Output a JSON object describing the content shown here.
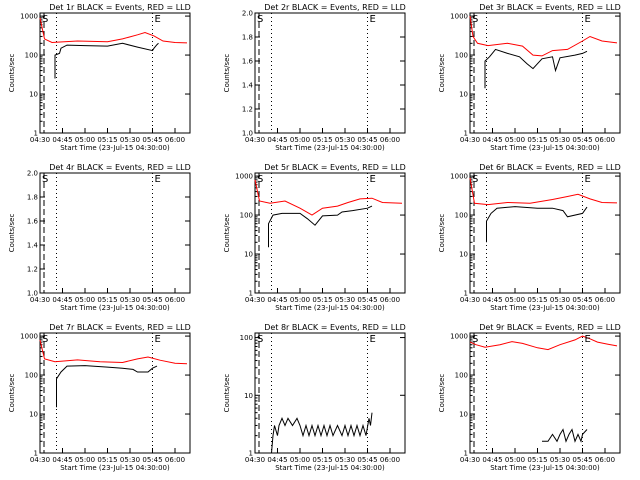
{
  "chart_data": [
    {
      "type": "line",
      "title": "Det 1r BLACK = Events, RED = LLD",
      "ylabel": "Counts/sec",
      "xlabel": "Start Time (23-Jul-15 04:30:00)",
      "scale": "log",
      "yticks": [
        "1",
        "10",
        "100",
        "1000"
      ],
      "ylim": [
        1,
        1200
      ],
      "xticks": [
        "04:30",
        "04:45",
        "05:00",
        "05:15",
        "05:30",
        "05:45",
        "06:00"
      ],
      "xlim": [
        0,
        100
      ],
      "vlines": [
        0,
        11,
        75
      ],
      "markers": {
        "S": 0,
        "E": 75
      },
      "series": [
        {
          "color": "#ff0000",
          "values": [
            [
              0,
              900
            ],
            [
              3,
              260
            ],
            [
              8,
              210
            ],
            [
              12,
              215
            ],
            [
              25,
              230
            ],
            [
              45,
              220
            ],
            [
              55,
              260
            ],
            [
              65,
              330
            ],
            [
              70,
              380
            ],
            [
              76,
              310
            ],
            [
              82,
              230
            ],
            [
              90,
              210
            ],
            [
              98,
              205
            ]
          ]
        },
        {
          "color": "#000000",
          "values": [
            [
              10,
              25
            ],
            [
              10,
              100
            ],
            [
              13,
              110
            ],
            [
              14,
              150
            ],
            [
              18,
              180
            ],
            [
              30,
              175
            ],
            [
              45,
              170
            ],
            [
              55,
              200
            ],
            [
              65,
              160
            ],
            [
              75,
              130
            ],
            [
              76,
              150
            ],
            [
              78,
              185
            ],
            [
              79,
              200
            ]
          ]
        }
      ]
    },
    {
      "type": "line",
      "title": "Det 2r BLACK = Events, RED = LLD",
      "ylabel": "Counts/sec",
      "xlabel": "Start Time (23-Jul-15 04:30:00)",
      "scale": "linear",
      "yticks": [
        "1.0",
        "1.2",
        "1.4",
        "1.6",
        "1.8",
        "2.0"
      ],
      "ylim": [
        1,
        2
      ],
      "xticks": [
        "04:30",
        "04:45",
        "05:00",
        "05:15",
        "05:30",
        "05:45",
        "06:00"
      ],
      "xlim": [
        0,
        100
      ],
      "vlines": [
        0,
        11,
        75
      ],
      "markers": {
        "S": 0,
        "E": 75
      },
      "series": []
    },
    {
      "type": "line",
      "title": "Det 3r BLACK = Events, RED = LLD",
      "ylabel": "Counts/sec",
      "xlabel": "Start Time (23-Jul-15 04:30:00)",
      "scale": "log",
      "yticks": [
        "1",
        "10",
        "100",
        "1000"
      ],
      "ylim": [
        1,
        1200
      ],
      "xticks": [
        "04:30",
        "04:45",
        "05:00",
        "05:15",
        "05:30",
        "05:45",
        "06:00"
      ],
      "xlim": [
        0,
        100
      ],
      "vlines": [
        0,
        11,
        75
      ],
      "markers": {
        "S": 0,
        "E": 75
      },
      "series": [
        {
          "color": "#ff0000",
          "values": [
            [
              0,
              1000
            ],
            [
              2,
              300
            ],
            [
              5,
              200
            ],
            [
              12,
              175
            ],
            [
              25,
              200
            ],
            [
              35,
              170
            ],
            [
              42,
              100
            ],
            [
              48,
              95
            ],
            [
              55,
              130
            ],
            [
              65,
              140
            ],
            [
              75,
              230
            ],
            [
              80,
              300
            ],
            [
              88,
              230
            ],
            [
              98,
              205
            ]
          ]
        },
        {
          "color": "#000000",
          "values": [
            [
              10,
              14
            ],
            [
              10,
              70
            ],
            [
              13,
              90
            ],
            [
              17,
              140
            ],
            [
              25,
              110
            ],
            [
              33,
              90
            ],
            [
              38,
              60
            ],
            [
              42,
              45
            ],
            [
              48,
              80
            ],
            [
              55,
              90
            ],
            [
              57,
              40
            ],
            [
              60,
              85
            ],
            [
              70,
              100
            ],
            [
              75,
              110
            ],
            [
              78,
              125
            ]
          ]
        }
      ]
    },
    {
      "type": "line",
      "title": "Det 4r BLACK = Events, RED = LLD",
      "ylabel": "Counts/sec",
      "xlabel": "Start Time (23-Jul-15 04:30:00)",
      "scale": "linear",
      "yticks": [
        "1.0",
        "1.2",
        "1.4",
        "1.6",
        "1.8",
        "2.0"
      ],
      "ylim": [
        1,
        2
      ],
      "xticks": [
        "04:30",
        "04:45",
        "05:00",
        "05:15",
        "05:30",
        "05:45",
        "06:00"
      ],
      "xlim": [
        0,
        100
      ],
      "vlines": [
        0,
        11,
        75
      ],
      "markers": {
        "S": 0,
        "E": 75
      },
      "series": []
    },
    {
      "type": "line",
      "title": "Det 5r BLACK = Events, RED = LLD",
      "ylabel": "Counts/sec",
      "xlabel": "Start Time (23-Jul-15 04:30:00)",
      "scale": "log",
      "yticks": [
        "1",
        "10",
        "100",
        "1000"
      ],
      "ylim": [
        1,
        1200
      ],
      "xticks": [
        "04:30",
        "04:45",
        "05:00",
        "05:15",
        "05:30",
        "05:45",
        "06:00"
      ],
      "xlim": [
        0,
        100
      ],
      "vlines": [
        0,
        11,
        75
      ],
      "markers": {
        "S": 0,
        "E": 75
      },
      "series": [
        {
          "color": "#ff0000",
          "values": [
            [
              0,
              800
            ],
            [
              3,
              230
            ],
            [
              10,
              200
            ],
            [
              20,
              230
            ],
            [
              30,
              150
            ],
            [
              38,
              100
            ],
            [
              45,
              150
            ],
            [
              55,
              170
            ],
            [
              62,
              210
            ],
            [
              70,
              260
            ],
            [
              78,
              270
            ],
            [
              85,
              210
            ],
            [
              98,
              200
            ]
          ]
        },
        {
          "color": "#000000",
          "values": [
            [
              9,
              15
            ],
            [
              9,
              60
            ],
            [
              12,
              100
            ],
            [
              18,
              110
            ],
            [
              30,
              110
            ],
            [
              35,
              80
            ],
            [
              40,
              55
            ],
            [
              45,
              95
            ],
            [
              55,
              100
            ],
            [
              58,
              120
            ],
            [
              65,
              130
            ],
            [
              75,
              150
            ],
            [
              78,
              170
            ]
          ]
        }
      ]
    },
    {
      "type": "line",
      "title": "Det 6r BLACK = Events, RED = LLD",
      "ylabel": "Counts/sec",
      "xlabel": "Start Time (23-Jul-15 04:30:00)",
      "scale": "log",
      "yticks": [
        "1",
        "10",
        "100",
        "1000"
      ],
      "ylim": [
        1,
        1200
      ],
      "xticks": [
        "04:30",
        "04:45",
        "05:00",
        "05:15",
        "05:30",
        "05:45",
        "06:00"
      ],
      "xlim": [
        0,
        100
      ],
      "vlines": [
        0,
        11,
        75
      ],
      "markers": {
        "S": 0,
        "E": 75
      },
      "series": [
        {
          "color": "#ff0000",
          "values": [
            [
              0,
              900
            ],
            [
              3,
              200
            ],
            [
              12,
              185
            ],
            [
              25,
              210
            ],
            [
              40,
              200
            ],
            [
              55,
              250
            ],
            [
              65,
              300
            ],
            [
              72,
              340
            ],
            [
              80,
              260
            ],
            [
              88,
              210
            ],
            [
              98,
              205
            ]
          ]
        },
        {
          "color": "#000000",
          "values": [
            [
              11,
              20
            ],
            [
              11,
              70
            ],
            [
              14,
              110
            ],
            [
              18,
              150
            ],
            [
              30,
              165
            ],
            [
              45,
              150
            ],
            [
              55,
              150
            ],
            [
              62,
              130
            ],
            [
              65,
              90
            ],
            [
              75,
              110
            ],
            [
              78,
              160
            ]
          ]
        }
      ]
    },
    {
      "type": "line",
      "title": "Det 7r BLACK = Events, RED = LLD",
      "ylabel": "Counts/sec",
      "xlabel": "Start Time (23-Jul-15 04:30:00)",
      "scale": "log",
      "yticks": [
        "1",
        "10",
        "100",
        "1000"
      ],
      "ylim": [
        1,
        1200
      ],
      "xticks": [
        "04:30",
        "04:45",
        "05:00",
        "05:15",
        "05:30",
        "05:45",
        "06:00"
      ],
      "xlim": [
        0,
        100
      ],
      "vlines": [
        0,
        11,
        75
      ],
      "markers": {
        "S": 0,
        "E": 75
      },
      "series": [
        {
          "color": "#ff0000",
          "values": [
            [
              0,
              800
            ],
            [
              3,
              260
            ],
            [
              10,
              220
            ],
            [
              25,
              245
            ],
            [
              40,
              220
            ],
            [
              55,
              210
            ],
            [
              65,
              260
            ],
            [
              72,
              290
            ],
            [
              80,
              240
            ],
            [
              90,
              200
            ],
            [
              98,
              195
            ]
          ]
        },
        {
          "color": "#000000",
          "values": [
            [
              11,
              15
            ],
            [
              11,
              80
            ],
            [
              14,
              120
            ],
            [
              18,
              170
            ],
            [
              30,
              175
            ],
            [
              45,
              160
            ],
            [
              55,
              150
            ],
            [
              62,
              140
            ],
            [
              65,
              120
            ],
            [
              72,
              120
            ],
            [
              75,
              150
            ],
            [
              78,
              170
            ]
          ]
        }
      ]
    },
    {
      "type": "line",
      "title": "Det 8r BLACK = Events, RED = LLD",
      "ylabel": "Counts/sec",
      "xlabel": "Start Time (23-Jul-15 04:30:00)",
      "scale": "log",
      "yticks": [
        "1",
        "10",
        "100"
      ],
      "ylim": [
        1,
        120
      ],
      "xticks": [
        "04:30",
        "04:45",
        "05:00",
        "05:15",
        "05:30",
        "05:45",
        "06:00"
      ],
      "xlim": [
        0,
        100
      ],
      "vlines": [
        0,
        11,
        75
      ],
      "markers": {
        "S": 0,
        "E": 75
      },
      "series": [
        {
          "color": "#000000",
          "values": [
            [
              11,
              1
            ],
            [
              12,
              2
            ],
            [
              13,
              3
            ],
            [
              15,
              2
            ],
            [
              16,
              3
            ],
            [
              18,
              4
            ],
            [
              20,
              3
            ],
            [
              22,
              4
            ],
            [
              25,
              3
            ],
            [
              28,
              4
            ],
            [
              30,
              3
            ],
            [
              32,
              2
            ],
            [
              34,
              3
            ],
            [
              36,
              2
            ],
            [
              38,
              3
            ],
            [
              40,
              2
            ],
            [
              42,
              3
            ],
            [
              44,
              2
            ],
            [
              46,
              3
            ],
            [
              48,
              2
            ],
            [
              50,
              3
            ],
            [
              52,
              2
            ],
            [
              55,
              3
            ],
            [
              58,
              2
            ],
            [
              60,
              3
            ],
            [
              62,
              2
            ],
            [
              64,
              3
            ],
            [
              66,
              2
            ],
            [
              68,
              3
            ],
            [
              70,
              2
            ],
            [
              72,
              3
            ],
            [
              74,
              2
            ],
            [
              76,
              4
            ],
            [
              77,
              3
            ],
            [
              78,
              5
            ]
          ]
        }
      ]
    },
    {
      "type": "line",
      "title": "Det 9r BLACK = Events, RED = LLD",
      "ylabel": "Counts/sec",
      "xlabel": "Start Time (23-Jul-15 04:30:00)",
      "scale": "log",
      "yticks": [
        "1",
        "10",
        "100",
        "1000"
      ],
      "ylim": [
        1,
        1200
      ],
      "xticks": [
        "04:30",
        "04:45",
        "05:00",
        "05:15",
        "05:30",
        "05:45",
        "06:00"
      ],
      "xlim": [
        0,
        100
      ],
      "vlines": [
        0,
        11,
        75
      ],
      "markers": {
        "S": 0,
        "E": 75
      },
      "series": [
        {
          "color": "#ff0000",
          "values": [
            [
              0,
              700
            ],
            [
              4,
              600
            ],
            [
              10,
              520
            ],
            [
              20,
              600
            ],
            [
              28,
              720
            ],
            [
              35,
              650
            ],
            [
              45,
              500
            ],
            [
              52,
              450
            ],
            [
              60,
              600
            ],
            [
              70,
              800
            ],
            [
              75,
              1000
            ],
            [
              80,
              850
            ],
            [
              85,
              700
            ],
            [
              92,
              620
            ],
            [
              98,
              560
            ]
          ]
        },
        {
          "color": "#000000",
          "values": [
            [
              48,
              2
            ],
            [
              52,
              2
            ],
            [
              55,
              3
            ],
            [
              58,
              2
            ],
            [
              60,
              3
            ],
            [
              62,
              4
            ],
            [
              64,
              2
            ],
            [
              66,
              3
            ],
            [
              68,
              4
            ],
            [
              70,
              2
            ],
            [
              72,
              3
            ],
            [
              74,
              2
            ],
            [
              75,
              3
            ],
            [
              78,
              4
            ]
          ]
        }
      ]
    }
  ]
}
